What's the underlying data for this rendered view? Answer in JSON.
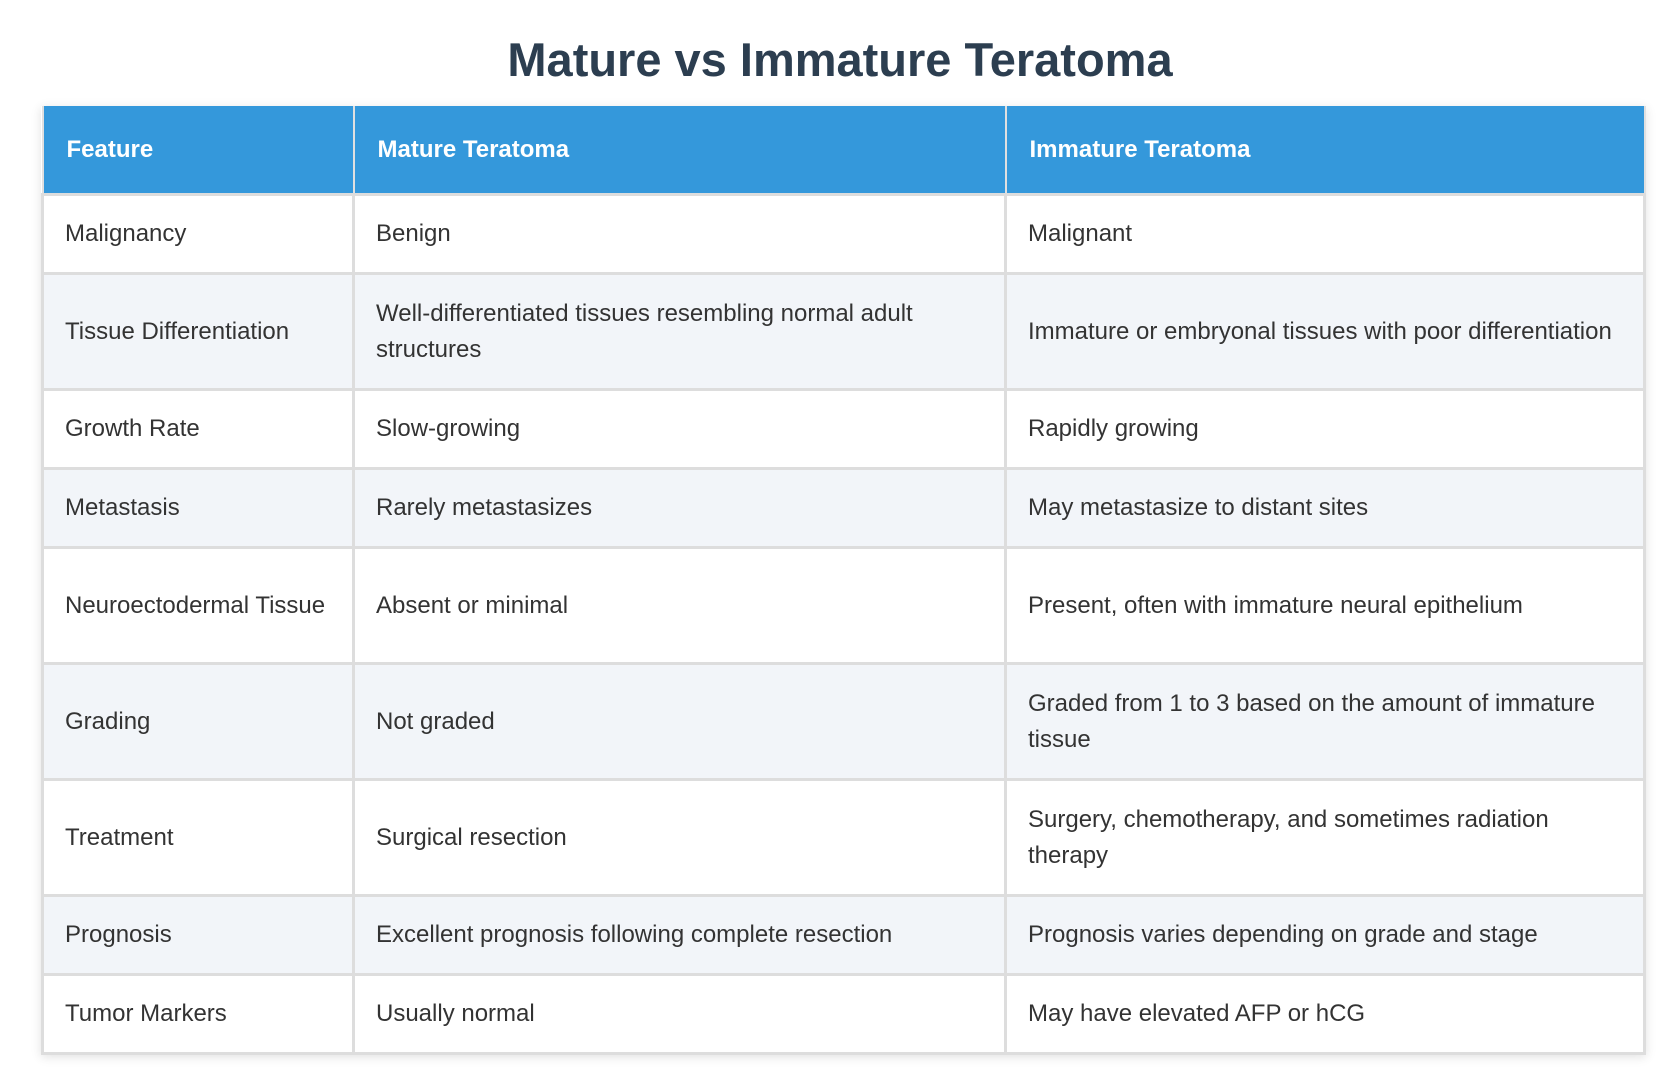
{
  "title": "Mature vs Immature Teratoma",
  "table": {
    "headers": [
      "Feature",
      "Mature Teratoma",
      "Immature Teratoma"
    ],
    "rows": [
      {
        "feature": "Malignancy",
        "mature": "Benign",
        "immature": "Malignant"
      },
      {
        "feature": "Tissue Differentiation",
        "mature": "Well-differentiated tissues resembling normal adult structures",
        "immature": "Immature or embryonal tissues with poor differentiation"
      },
      {
        "feature": "Growth Rate",
        "mature": "Slow-growing",
        "immature": "Rapidly growing"
      },
      {
        "feature": "Metastasis",
        "mature": "Rarely metastasizes",
        "immature": "May metastasize to distant sites"
      },
      {
        "feature": "Neuroectodermal Tissue",
        "mature": "Absent or minimal",
        "immature": "Present, often with immature neural epithelium"
      },
      {
        "feature": "Grading",
        "mature": "Not graded",
        "immature": "Graded from 1 to 3 based on the amount of immature tissue"
      },
      {
        "feature": "Treatment",
        "mature": "Surgical resection",
        "immature": "Surgery, chemotherapy, and sometimes radiation therapy"
      },
      {
        "feature": "Prognosis",
        "mature": "Excellent prognosis following complete resection",
        "immature": "Prognosis varies depending on grade and stage"
      },
      {
        "feature": "Tumor Markers",
        "mature": "Usually normal",
        "immature": "May have elevated AFP or hCG"
      }
    ]
  }
}
